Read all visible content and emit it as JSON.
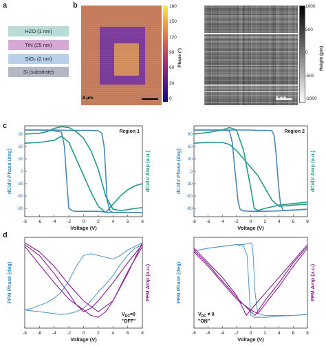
{
  "panels": {
    "a": "a",
    "b": "b",
    "c": "c",
    "d": "d"
  },
  "stack": {
    "layers": [
      {
        "label": "HZO (1 nm)",
        "color": "#b9ddd6"
      },
      {
        "label": "TiN (25 nm)",
        "color": "#d7a8d6"
      },
      {
        "label": "SiO₂ (2 nm)",
        "color": "#b9d0e8"
      },
      {
        "label": "Si (substrate)",
        "color": "#b3b8c2"
      }
    ]
  },
  "phase_map": {
    "colorbar_label": "Phase (°)",
    "ticks": [
      "180",
      "150",
      "120",
      "90",
      "60",
      "30",
      "0"
    ],
    "scale_bar": "8 μm",
    "colors": {
      "outer": "#c47a5a",
      "frame": "#7a3a9a",
      "center": "#d28c5c"
    }
  },
  "height_map": {
    "colorbar_label": "Height (pm)",
    "ticks": [
      "1000",
      "500",
      "0",
      "-500",
      "-1000"
    ],
    "scale_bar": "8 μm"
  },
  "chart_data": [
    {
      "type": "line",
      "title": "Region 1",
      "xlabel": "Voltage (V)",
      "ylabel": "dC/dV Phase (deg)",
      "ylabel_right": "dC/dV Amp (a.u.)",
      "xlim": [
        -8,
        8
      ],
      "ylim": [
        -110,
        110
      ],
      "xticks": [
        "-8",
        "-6",
        "-4",
        "-2",
        "0",
        "2",
        "4",
        "6",
        "8"
      ],
      "yticks": [
        "90",
        "60",
        "30",
        "0",
        "-30",
        "-60",
        "-90"
      ],
      "series": [
        {
          "color": "#4a86b8",
          "x": [
            -8,
            -6,
            -4,
            -3,
            -2.6,
            -2.3,
            -2,
            -1.5,
            -1,
            0,
            1,
            2,
            2.5,
            3,
            4,
            6,
            8
          ],
          "y": [
            100,
            100,
            98,
            95,
            60,
            -20,
            -90,
            -96,
            -97,
            -97,
            -97,
            -97,
            -98,
            -99,
            -100,
            -100,
            -100
          ]
        },
        {
          "color": "#4a86b8",
          "x": [
            8,
            6,
            4,
            3.6,
            3.2,
            3,
            2.8,
            2.5,
            2,
            1,
            0,
            -1,
            -2,
            -4,
            -6,
            -8
          ],
          "y": [
            -100,
            -100,
            -100,
            -96,
            -70,
            0,
            60,
            92,
            98,
            99,
            99,
            99,
            99,
            100,
            100,
            100
          ]
        },
        {
          "color": "#1f9a88",
          "x": [
            -8,
            -6,
            -5,
            -4,
            -3,
            -2,
            -1,
            0,
            1,
            2,
            3,
            4,
            5,
            6,
            7,
            8
          ],
          "y": [
            90,
            92,
            96,
            104,
            108,
            106,
            96,
            80,
            50,
            5,
            -60,
            -92,
            -95,
            -93,
            -90,
            -88
          ]
        },
        {
          "color": "#1f9a88",
          "x": [
            8,
            7,
            6,
            5,
            4,
            3,
            2,
            1,
            0,
            -1,
            -2,
            -3,
            -4,
            -6,
            -8
          ],
          "y": [
            -30,
            -35,
            -45,
            -60,
            -80,
            -100,
            -85,
            -50,
            -10,
            30,
            70,
            85,
            75,
            70,
            68
          ]
        }
      ]
    },
    {
      "type": "line",
      "title": "Region 2",
      "xlabel": "Voltage (V)",
      "ylabel": "dC/dV Phase (deg)",
      "ylabel_right": "dC/dV Amp (a.u.)",
      "xlim": [
        -8,
        8
      ],
      "ylim": [
        -110,
        110
      ],
      "xticks": [
        "-8",
        "-6",
        "-4",
        "-2",
        "0",
        "2",
        "4",
        "6",
        "8"
      ],
      "yticks": [
        "90",
        "60",
        "30",
        "0",
        "-30",
        "-60",
        "-90"
      ],
      "series": [
        {
          "color": "#4a86b8",
          "x": [
            -8,
            -6,
            -4,
            -3,
            -2.6,
            -2.2,
            -1.8,
            -1.5,
            -1,
            0,
            2,
            4,
            6,
            8
          ],
          "y": [
            100,
            100,
            100,
            98,
            70,
            0,
            -70,
            -92,
            -96,
            -97,
            -97,
            -96,
            -94,
            -92
          ]
        },
        {
          "color": "#4a86b8",
          "x": [
            8,
            6,
            4.6,
            4.2,
            3.9,
            3.6,
            3.3,
            3,
            2.5,
            1,
            0,
            -2,
            -4,
            -6,
            -8
          ],
          "y": [
            -92,
            -94,
            -95,
            -80,
            -30,
            40,
            88,
            98,
            99,
            99,
            100,
            100,
            100,
            100,
            100
          ]
        },
        {
          "color": "#1f9a88",
          "x": [
            -8,
            -6,
            -4,
            -3,
            -2,
            -1,
            0,
            0.5,
            1,
            2,
            4,
            6,
            8
          ],
          "y": [
            90,
            94,
            100,
            106,
            100,
            50,
            -40,
            -90,
            -95,
            -90,
            -82,
            -78,
            -75
          ]
        },
        {
          "color": "#1f9a88",
          "x": [
            8,
            6,
            4,
            3,
            2,
            1,
            0,
            -1,
            -2,
            -3,
            -4,
            -6,
            -8
          ],
          "y": [
            -80,
            -82,
            -85,
            -70,
            -40,
            -10,
            10,
            30,
            50,
            65,
            70,
            70,
            68
          ]
        }
      ]
    },
    {
      "type": "line",
      "xlabel": "Voltage (V)",
      "ylabel": "PFM Phase (deg)",
      "ylabel_right": "PFM Amp (a.u.)",
      "annotation_line1": "V",
      "annotation_sub": "DC",
      "annotation_rest": "=0",
      "annotation_line2": "\"OFF\"",
      "xlim": [
        -8,
        8
      ],
      "ylim": [
        0,
        100
      ],
      "xticks": [
        "-8",
        "-6",
        "-4",
        "-2",
        "0",
        "2",
        "4",
        "6",
        "8"
      ],
      "series": [
        {
          "color": "#5b9bc8",
          "x": [
            -8,
            -7,
            -6,
            -5,
            -4,
            -3,
            -2,
            -1,
            0,
            1,
            2,
            3,
            4,
            5,
            6,
            7,
            8
          ],
          "y": [
            20,
            22,
            25,
            28,
            33,
            40,
            52,
            68,
            80,
            82,
            80,
            78,
            76,
            80,
            86,
            90,
            94
          ]
        },
        {
          "color": "#5b9bc8",
          "x": [
            8,
            7,
            6,
            5,
            4,
            3,
            2,
            1,
            0,
            -1,
            -2,
            -3,
            -4,
            -5,
            -6,
            -7,
            -8
          ],
          "y": [
            92,
            88,
            80,
            70,
            58,
            48,
            40,
            30,
            22,
            18,
            16,
            15,
            16,
            17,
            18,
            19,
            20
          ]
        },
        {
          "color": "#8b1f8f",
          "x": [
            -8,
            -6,
            -4,
            -2,
            -1,
            0,
            1,
            2,
            4,
            6,
            8
          ],
          "y": [
            92,
            80,
            60,
            38,
            26,
            18,
            22,
            30,
            50,
            72,
            92
          ]
        },
        {
          "color": "#8b1f8f",
          "x": [
            -8,
            -6,
            -4,
            -2,
            0,
            1,
            2,
            3,
            4,
            6,
            8
          ],
          "y": [
            90,
            70,
            50,
            32,
            20,
            14,
            12,
            18,
            30,
            62,
            90
          ]
        },
        {
          "color": "#8b1f8f",
          "x": [
            -8,
            -6,
            -4,
            -3,
            -2,
            0,
            2,
            4,
            6,
            8
          ],
          "y": [
            94,
            84,
            68,
            58,
            48,
            30,
            18,
            30,
            60,
            94
          ]
        }
      ]
    },
    {
      "type": "line",
      "xlabel": "Voltage (V)",
      "ylabel": "PFM Phase (deg)",
      "ylabel_right": "PFM Amp (a.u.)",
      "annotation_line1": "V",
      "annotation_sub": "DC",
      "annotation_rest": " ≠ 0",
      "annotation_line2": "\"ON\"",
      "xlim": [
        -8,
        8
      ],
      "ylim": [
        0,
        100
      ],
      "xticks": [
        "-8",
        "-6",
        "-4",
        "-2",
        "0",
        "2",
        "4",
        "6",
        "8"
      ],
      "series": [
        {
          "color": "#5b9bc8",
          "x": [
            -8,
            -6,
            -4,
            -2,
            -1,
            -0.5,
            -0.2,
            0,
            0.5,
            2,
            4,
            6,
            8
          ],
          "y": [
            85,
            88,
            90,
            92,
            90,
            80,
            40,
            14,
            12,
            12,
            13,
            14,
            15
          ]
        },
        {
          "color": "#5b9bc8",
          "x": [
            8,
            6,
            4,
            2,
            1,
            0.6,
            0.4,
            0.2,
            0,
            -1,
            -2,
            -4,
            -6,
            -8
          ],
          "y": [
            15,
            14,
            14,
            14,
            16,
            40,
            75,
            92,
            94,
            92,
            92,
            90,
            88,
            85
          ]
        },
        {
          "color": "#8b1f8f",
          "x": [
            -8,
            -6,
            -4,
            -2,
            -0.6,
            0,
            2,
            4,
            6,
            8
          ],
          "y": [
            88,
            72,
            56,
            36,
            14,
            20,
            38,
            56,
            74,
            92
          ]
        },
        {
          "color": "#8b1f8f",
          "x": [
            -8,
            -6,
            -4,
            -2,
            0,
            0.6,
            2,
            4,
            6,
            8
          ],
          "y": [
            86,
            70,
            52,
            34,
            18,
            14,
            30,
            50,
            72,
            90
          ]
        },
        {
          "color": "#8b1f8f",
          "x": [
            -8,
            -6,
            -4,
            -2,
            0,
            1,
            2,
            4,
            6,
            8
          ],
          "y": [
            84,
            68,
            50,
            32,
            20,
            16,
            26,
            46,
            68,
            88
          ]
        }
      ]
    }
  ]
}
